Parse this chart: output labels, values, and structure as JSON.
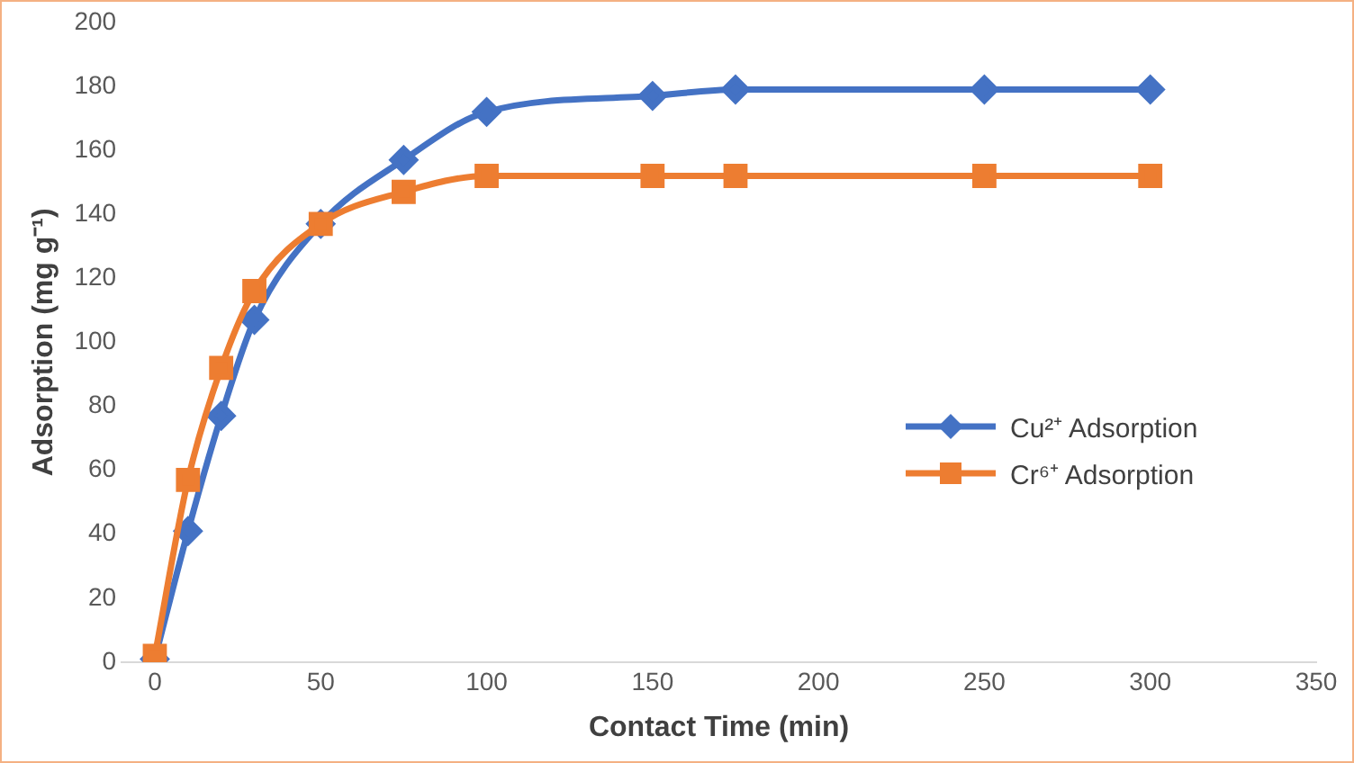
{
  "chart_data": {
    "type": "line",
    "xlabel": "Contact Time (min)",
    "ylabel": "Adsorption (mg g⁻¹)",
    "x": [
      0,
      10,
      20,
      30,
      50,
      75,
      100,
      150,
      175,
      250,
      300
    ],
    "series": [
      {
        "name": "Cu²⁺ Adsorption",
        "color": "#4472c4",
        "marker": "diamond",
        "values": [
          1,
          41,
          77,
          107,
          137,
          157,
          172,
          177,
          179,
          179,
          179
        ]
      },
      {
        "name": "Cr⁶⁺ Adsorption",
        "color": "#ed7d31",
        "marker": "square",
        "values": [
          2,
          57,
          92,
          116,
          137,
          147,
          152,
          152,
          152,
          152,
          152
        ]
      }
    ],
    "xlim": [
      -10,
      350
    ],
    "xticks": [
      0,
      50,
      100,
      150,
      200,
      250,
      300,
      350
    ],
    "ylim": [
      0,
      200
    ],
    "yticks": [
      0,
      20,
      40,
      60,
      80,
      100,
      120,
      140,
      160,
      180,
      200
    ],
    "grid": false,
    "legend": "right",
    "line_style": "solid"
  }
}
